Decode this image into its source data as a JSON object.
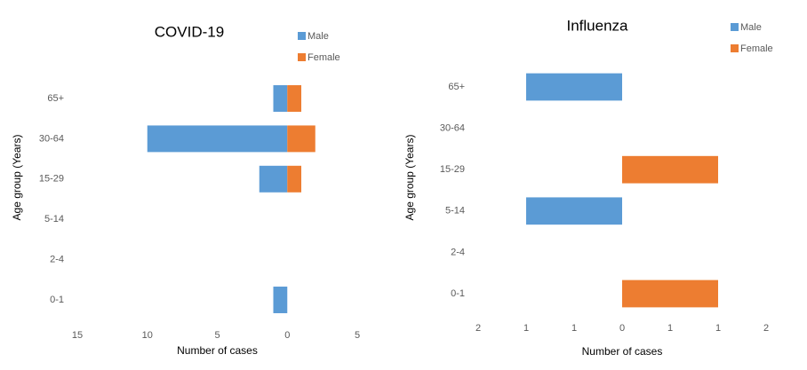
{
  "chart_data": [
    {
      "type": "bar",
      "orientation": "horizontal",
      "title": "COVID-19",
      "xlabel": "Number of cases",
      "ylabel": "Age group (Years)",
      "categories": [
        "0-1",
        "2-4",
        "5-14",
        "15-29",
        "30-64",
        "65+"
      ],
      "series": [
        {
          "name": "Male",
          "color": "#5b9bd5",
          "values": [
            -1,
            null,
            null,
            -2,
            -10,
            -1
          ]
        },
        {
          "name": "Female",
          "color": "#ed7d31",
          "values": [
            null,
            null,
            null,
            1,
            2,
            1
          ]
        }
      ],
      "xlim": [
        -15,
        5
      ],
      "xticks": [
        {
          "value": -15,
          "label": "15"
        },
        {
          "value": -10,
          "label": "10"
        },
        {
          "value": -5,
          "label": "5"
        },
        0,
        5
      ],
      "grid": false,
      "legend": "top-right"
    },
    {
      "type": "bar",
      "orientation": "horizontal",
      "title": "Influenza",
      "xlabel": "Number of cases",
      "ylabel": "Age group (Years)",
      "categories": [
        "0-1",
        "2-4",
        "5-14",
        "15-29",
        "30-64",
        "65+"
      ],
      "series": [
        {
          "name": "Male",
          "color": "#5b9bd5",
          "values": [
            null,
            null,
            -1,
            null,
            null,
            -1
          ]
        },
        {
          "name": "Female",
          "color": "#ed7d31",
          "values": [
            1,
            null,
            null,
            1,
            null,
            null
          ]
        }
      ],
      "xlim": [
        -1.5,
        1.5
      ],
      "xticks": [
        {
          "value": -1.5,
          "label": "2"
        },
        {
          "value": -1,
          "label": "1"
        },
        {
          "value": -0.5,
          "label": "1"
        },
        0,
        {
          "value": 0.5,
          "label": "1"
        },
        1,
        {
          "value": 1.5,
          "label": "2"
        }
      ],
      "grid": false,
      "legend": "top-right"
    }
  ]
}
